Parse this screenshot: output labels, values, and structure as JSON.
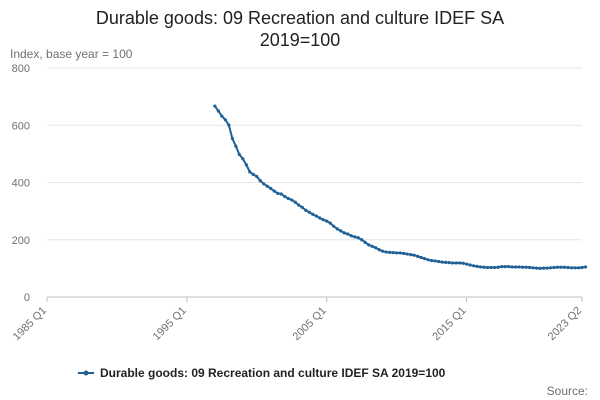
{
  "chart_data": {
    "type": "line",
    "title": "Durable goods: 09 Recreation and culture IDEF SA",
    "subtitle": "2019=100",
    "ylabel": "Index, base year = 100",
    "xlabel": "",
    "ylim": [
      0,
      800
    ],
    "y_ticks": [
      0,
      200,
      400,
      600,
      800
    ],
    "xlim": [
      "1985 Q1",
      "2023 Q2"
    ],
    "x_ticks": [
      "1985 Q1",
      "1995 Q1",
      "2005 Q1",
      "2015 Q1",
      "2023 Q2"
    ],
    "grid": true,
    "legend_position": "bottom",
    "source_label": "Source:",
    "series": [
      {
        "name": "Durable goods: 09 Recreation and culture IDEF SA 2019=100",
        "color": "#206095",
        "start_quarter": "1997 Q1",
        "values": [
          667,
          650,
          632,
          619,
          601,
          554,
          527,
          498,
          483,
          462,
          437,
          428,
          421,
          406,
          395,
          387,
          379,
          370,
          362,
          360,
          351,
          344,
          339,
          331,
          321,
          313,
          303,
          296,
          289,
          283,
          276,
          270,
          265,
          258,
          247,
          238,
          231,
          224,
          220,
          214,
          210,
          207,
          200,
          191,
          182,
          177,
          172,
          165,
          160,
          157,
          156,
          155,
          154,
          154,
          152,
          150,
          148,
          146,
          142,
          138,
          134,
          130,
          127,
          126,
          124,
          122,
          121,
          120,
          119,
          119,
          119,
          118,
          115,
          112,
          109,
          107,
          105,
          104,
          103,
          103,
          103,
          104,
          106,
          106,
          106,
          105,
          105,
          105,
          104,
          104,
          103,
          102,
          101,
          100,
          101,
          101,
          102,
          103,
          104,
          104,
          104,
          103,
          102,
          102,
          102,
          103,
          105
        ]
      }
    ]
  }
}
